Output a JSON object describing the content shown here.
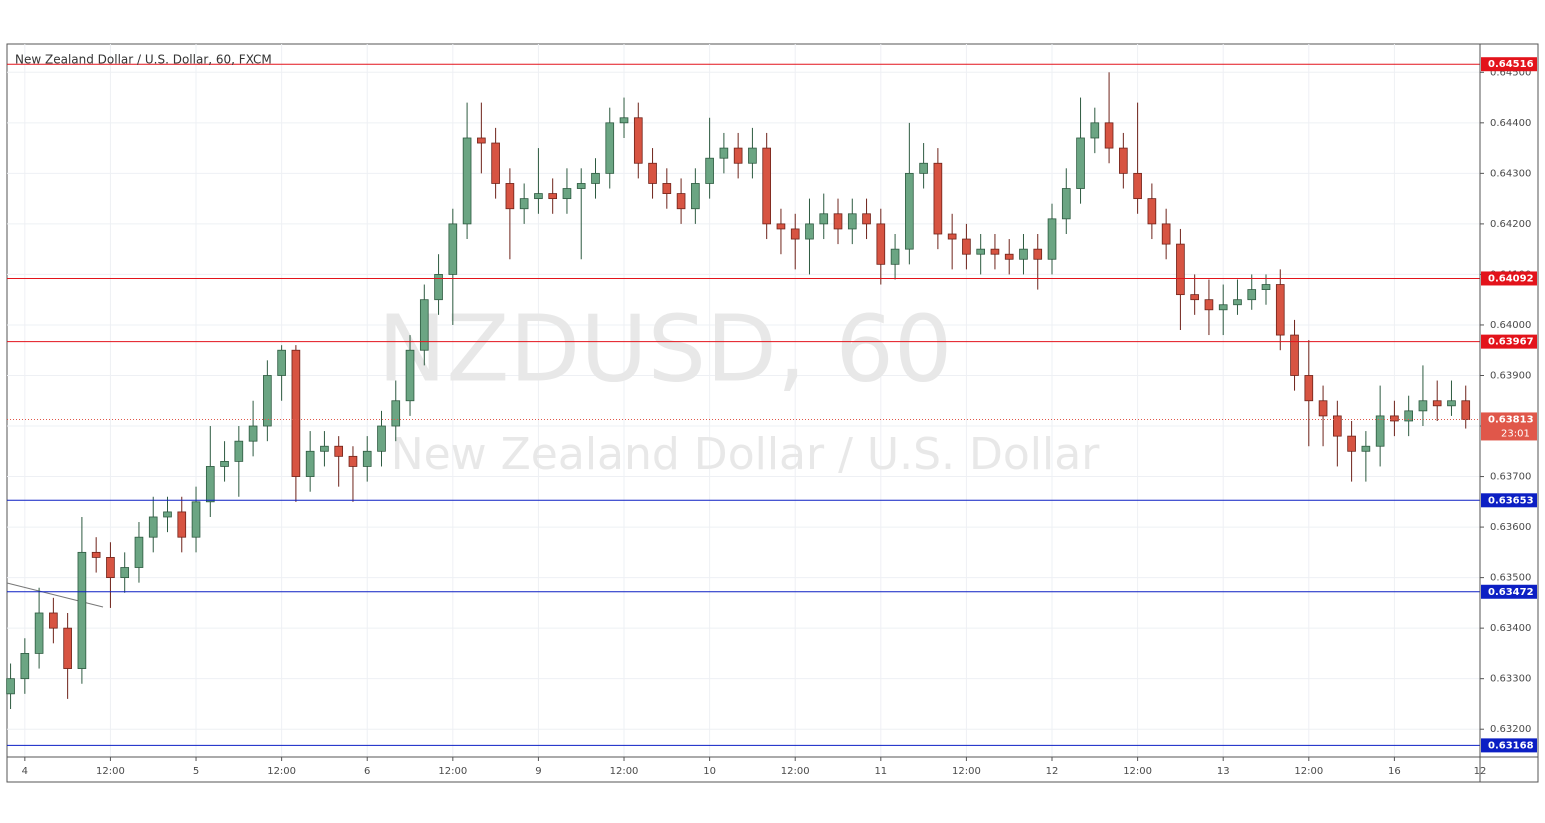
{
  "chart_data": {
    "type": "candlestick",
    "title": "New Zealand Dollar / U.S. Dollar, 60, FXCM",
    "watermark": "NZDUSD, 60",
    "watermark_subtitle": "New Zealand Dollar / U.S. Dollar",
    "up_color": "#6ba583",
    "down_color": "#d75442",
    "x": [
      -2,
      0,
      2,
      4,
      6,
      8,
      10,
      12,
      14,
      16,
      18,
      20,
      22,
      24,
      26,
      28,
      30,
      32,
      34,
      36,
      38,
      40,
      42,
      44,
      46,
      48,
      50,
      52,
      54,
      56,
      58,
      60,
      62,
      64,
      66,
      68,
      70,
      72,
      74,
      76,
      78,
      80,
      82,
      84,
      86,
      88,
      90,
      92,
      94,
      96,
      98,
      100,
      102,
      104,
      106,
      108,
      110,
      112,
      114,
      116,
      118,
      120,
      122,
      124,
      126,
      128,
      130,
      132,
      134,
      136,
      138,
      140,
      142,
      144,
      146,
      148,
      150,
      152,
      154,
      156,
      158,
      160,
      162,
      164,
      166,
      168,
      170,
      172,
      174,
      176,
      178,
      180,
      182,
      184,
      186,
      188,
      190,
      192,
      194,
      196,
      198,
      200,
      202
    ],
    "open": [
      0.6327,
      0.633,
      0.6335,
      0.6343,
      0.634,
      0.6332,
      0.6355,
      0.6354,
      0.635,
      0.6352,
      0.6358,
      0.6362,
      0.6363,
      0.6358,
      0.6365,
      0.6372,
      0.6373,
      0.6377,
      0.638,
      0.639,
      0.6395,
      0.637,
      0.6375,
      0.6376,
      0.6374,
      0.6372,
      0.6375,
      0.638,
      0.6385,
      0.6395,
      0.6405,
      0.641,
      0.642,
      0.6437,
      0.6436,
      0.6428,
      0.6423,
      0.6425,
      0.6426,
      0.6425,
      0.6427,
      0.6428,
      0.643,
      0.644,
      0.6441,
      0.6432,
      0.6428,
      0.6426,
      0.6423,
      0.6428,
      0.6433,
      0.6435,
      0.6432,
      0.6435,
      0.642,
      0.6419,
      0.6417,
      0.642,
      0.6422,
      0.6419,
      0.6422,
      0.642,
      0.6412,
      0.6415,
      0.643,
      0.6432,
      0.6418,
      0.6417,
      0.6414,
      0.6415,
      0.6414,
      0.6413,
      0.6415,
      0.6413,
      0.6421,
      0.6427,
      0.6437,
      0.644,
      0.6435,
      0.643,
      0.6425,
      0.642,
      0.6416,
      0.6406,
      0.6405,
      0.6403,
      0.6404,
      0.6405,
      0.6407,
      0.6408,
      0.6398,
      0.639,
      0.6385,
      0.6382,
      0.6378,
      0.6375,
      0.6376,
      0.6382,
      0.6381,
      0.6383,
      0.6385,
      0.6384,
      0.6385
    ],
    "high": [
      0.6333,
      0.6338,
      0.6348,
      0.6346,
      0.6343,
      0.6362,
      0.6358,
      0.6357,
      0.6355,
      0.6361,
      0.6366,
      0.6366,
      0.6366,
      0.6368,
      0.638,
      0.6377,
      0.638,
      0.6385,
      0.6393,
      0.6396,
      0.6396,
      0.6379,
      0.6379,
      0.6378,
      0.6376,
      0.6378,
      0.6383,
      0.6389,
      0.6398,
      0.6408,
      0.6414,
      0.6423,
      0.6444,
      0.6444,
      0.6439,
      0.6431,
      0.6428,
      0.6435,
      0.6429,
      0.6431,
      0.6431,
      0.6433,
      0.6443,
      0.6445,
      0.6444,
      0.6435,
      0.6431,
      0.6429,
      0.6431,
      0.6441,
      0.6438,
      0.6438,
      0.6439,
      0.6438,
      0.6423,
      0.6422,
      0.6425,
      0.6426,
      0.6425,
      0.6425,
      0.6425,
      0.6423,
      0.6418,
      0.644,
      0.6436,
      0.6435,
      0.6422,
      0.642,
      0.6418,
      0.6418,
      0.6417,
      0.6418,
      0.6418,
      0.6424,
      0.6431,
      0.6445,
      0.6443,
      0.645,
      0.6438,
      0.6444,
      0.6428,
      0.6423,
      0.6419,
      0.641,
      0.6409,
      0.6408,
      0.6409,
      0.641,
      0.641,
      0.6411,
      0.6401,
      0.6397,
      0.6388,
      0.6385,
      0.6381,
      0.6379,
      0.6388,
      0.6385,
      0.6386,
      0.6392,
      0.6389,
      0.6389,
      0.6388
    ],
    "low": [
      0.6324,
      0.6327,
      0.6332,
      0.6337,
      0.6326,
      0.6329,
      0.6351,
      0.6344,
      0.6347,
      0.6349,
      0.6355,
      0.6359,
      0.6355,
      0.6355,
      0.6362,
      0.6369,
      0.6366,
      0.6374,
      0.6377,
      0.6385,
      0.6365,
      0.6367,
      0.6372,
      0.6368,
      0.6365,
      0.6369,
      0.6372,
      0.6377,
      0.6382,
      0.6392,
      0.6402,
      0.64,
      0.6417,
      0.643,
      0.6425,
      0.6413,
      0.642,
      0.6422,
      0.6422,
      0.6422,
      0.6413,
      0.6425,
      0.6427,
      0.6437,
      0.6429,
      0.6425,
      0.6423,
      0.642,
      0.642,
      0.6425,
      0.643,
      0.6429,
      0.6429,
      0.6417,
      0.6414,
      0.6411,
      0.641,
      0.6417,
      0.6416,
      0.6416,
      0.6417,
      0.6408,
      0.6409,
      0.6412,
      0.6427,
      0.6415,
      0.6411,
      0.6411,
      0.641,
      0.6411,
      0.641,
      0.641,
      0.6407,
      0.641,
      0.6418,
      0.6424,
      0.6434,
      0.6432,
      0.6427,
      0.6422,
      0.6417,
      0.6413,
      0.6399,
      0.6402,
      0.6398,
      0.6398,
      0.6402,
      0.6403,
      0.6404,
      0.6395,
      0.6387,
      0.6376,
      0.6376,
      0.6372,
      0.6369,
      0.6369,
      0.6372,
      0.6378,
      0.6378,
      0.638,
      0.6381,
      0.6382,
      0.63795
    ],
    "close": [
      0.633,
      0.6335,
      0.6343,
      0.634,
      0.6332,
      0.6355,
      0.6354,
      0.635,
      0.6352,
      0.6358,
      0.6362,
      0.6363,
      0.6358,
      0.6365,
      0.6372,
      0.6373,
      0.6377,
      0.638,
      0.639,
      0.6395,
      0.637,
      0.6375,
      0.6376,
      0.6374,
      0.6372,
      0.6375,
      0.638,
      0.6385,
      0.6395,
      0.6405,
      0.641,
      0.642,
      0.6437,
      0.6436,
      0.6428,
      0.6423,
      0.6425,
      0.6426,
      0.6425,
      0.6427,
      0.6428,
      0.643,
      0.644,
      0.6441,
      0.6432,
      0.6428,
      0.6426,
      0.6423,
      0.6428,
      0.6433,
      0.6435,
      0.6432,
      0.6435,
      0.642,
      0.6419,
      0.6417,
      0.642,
      0.6422,
      0.6419,
      0.6422,
      0.642,
      0.6412,
      0.6415,
      0.643,
      0.6432,
      0.6418,
      0.6417,
      0.6414,
      0.6415,
      0.6414,
      0.6413,
      0.6415,
      0.6413,
      0.6421,
      0.6427,
      0.6437,
      0.644,
      0.6435,
      0.643,
      0.6425,
      0.642,
      0.6416,
      0.6406,
      0.6405,
      0.6403,
      0.6404,
      0.6405,
      0.6407,
      0.6408,
      0.6398,
      0.639,
      0.6385,
      0.6382,
      0.6378,
      0.6375,
      0.6376,
      0.6382,
      0.6381,
      0.6383,
      0.6385,
      0.6384,
      0.6385,
      0.63813
    ],
    "xlim": [
      -2.5,
      204
    ],
    "ylim": [
      0.63145,
      0.64556
    ],
    "xticks": [
      {
        "value": 0,
        "label": "4"
      },
      {
        "value": 12,
        "label": "12:00"
      },
      {
        "value": 24,
        "label": "5"
      },
      {
        "value": 36,
        "label": "12:00"
      },
      {
        "value": 48,
        "label": "6"
      },
      {
        "value": 60,
        "label": "12:00"
      },
      {
        "value": 72,
        "label": "9"
      },
      {
        "value": 84,
        "label": "12:00"
      },
      {
        "value": 96,
        "label": "10"
      },
      {
        "value": 108,
        "label": "12:00"
      },
      {
        "value": 120,
        "label": "11"
      },
      {
        "value": 132,
        "label": "12:00"
      },
      {
        "value": 144,
        "label": "12"
      },
      {
        "value": 156,
        "label": "12:00"
      },
      {
        "value": 168,
        "label": "13"
      },
      {
        "value": 180,
        "label": "12:00"
      },
      {
        "value": 192,
        "label": "16"
      },
      {
        "value": 204,
        "label": "12"
      }
    ],
    "yticks": [
      {
        "value": 0.632,
        "label": "0.63200"
      },
      {
        "value": 0.633,
        "label": "0.63300"
      },
      {
        "value": 0.634,
        "label": "0.63400"
      },
      {
        "value": 0.635,
        "label": "0.63500"
      },
      {
        "value": 0.636,
        "label": "0.63600"
      },
      {
        "value": 0.637,
        "label": "0.63700"
      },
      {
        "value": 0.638,
        "label": "0.63800"
      },
      {
        "value": 0.639,
        "label": "0.63900"
      },
      {
        "value": 0.64,
        "label": "0.64000"
      },
      {
        "value": 0.641,
        "label": "0.64100"
      },
      {
        "value": 0.642,
        "label": "0.64200"
      },
      {
        "value": 0.643,
        "label": "0.64300"
      },
      {
        "value": 0.644,
        "label": "0.64400"
      },
      {
        "value": 0.645,
        "label": "0.64500"
      }
    ],
    "grid": true,
    "levels": [
      {
        "value": 0.64516,
        "label": "0.64516",
        "color": "#e3131b"
      },
      {
        "value": 0.64092,
        "label": "0.64092",
        "color": "#e3131b"
      },
      {
        "value": 0.63967,
        "label": "0.63967",
        "color": "#e3131b"
      },
      {
        "value": 0.63653,
        "label": "0.63653",
        "color": "#0c1fc4"
      },
      {
        "value": 0.63472,
        "label": "0.63472",
        "color": "#0c1fc4"
      },
      {
        "value": 0.63168,
        "label": "0.63168",
        "color": "#0c1fc4"
      }
    ],
    "current": {
      "value": 0.63813,
      "label": "0.63813",
      "countdown": "23:01",
      "color": "#e0574a"
    }
  }
}
